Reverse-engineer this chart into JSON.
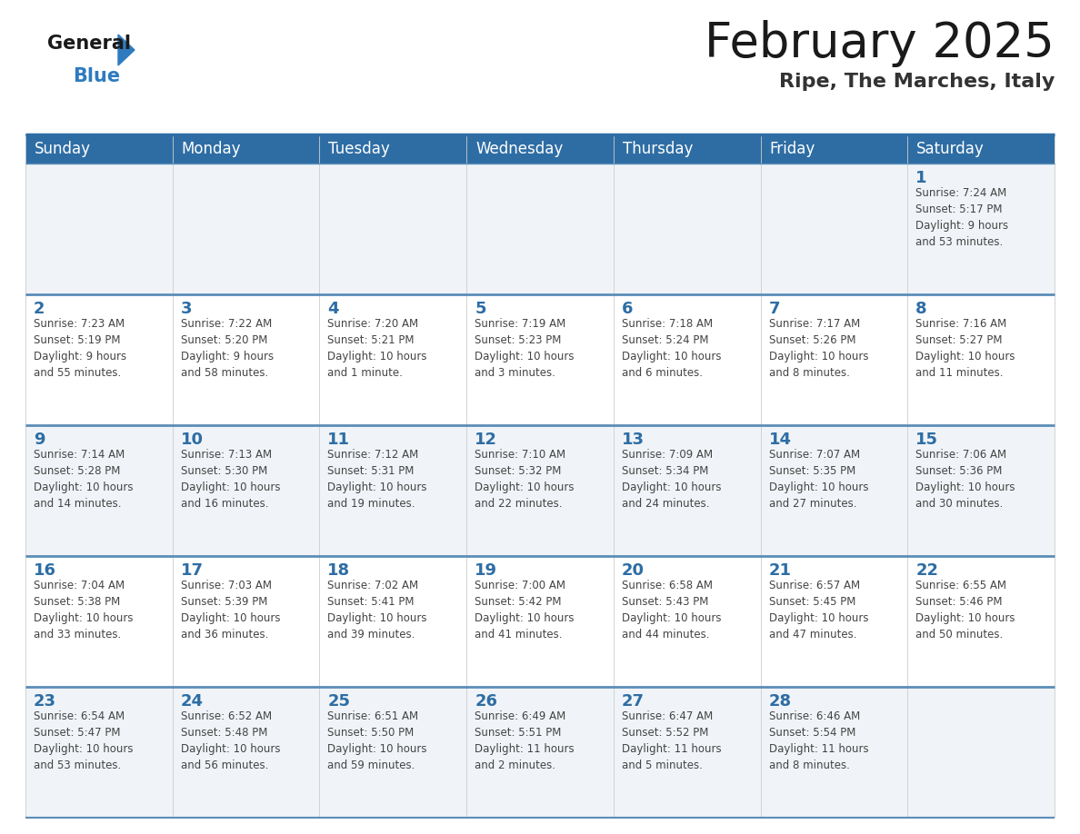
{
  "title": "February 2025",
  "subtitle": "Ripe, The Marches, Italy",
  "header_bg_color": "#2e6da4",
  "header_text_color": "#ffffff",
  "cell_bg_even": "#f0f4f8",
  "cell_bg_odd": "#ffffff",
  "day_number_color": "#2e6da4",
  "text_color": "#444444",
  "separator_color": "#5b8db8",
  "border_color": "#2e6da4",
  "logo_black": "#1a1a1a",
  "logo_blue": "#2e7bbf",
  "days_of_week": [
    "Sunday",
    "Monday",
    "Tuesday",
    "Wednesday",
    "Thursday",
    "Friday",
    "Saturday"
  ],
  "weeks": [
    [
      {
        "day": null,
        "info": null
      },
      {
        "day": null,
        "info": null
      },
      {
        "day": null,
        "info": null
      },
      {
        "day": null,
        "info": null
      },
      {
        "day": null,
        "info": null
      },
      {
        "day": null,
        "info": null
      },
      {
        "day": 1,
        "info": "Sunrise: 7:24 AM\nSunset: 5:17 PM\nDaylight: 9 hours\nand 53 minutes."
      }
    ],
    [
      {
        "day": 2,
        "info": "Sunrise: 7:23 AM\nSunset: 5:19 PM\nDaylight: 9 hours\nand 55 minutes."
      },
      {
        "day": 3,
        "info": "Sunrise: 7:22 AM\nSunset: 5:20 PM\nDaylight: 9 hours\nand 58 minutes."
      },
      {
        "day": 4,
        "info": "Sunrise: 7:20 AM\nSunset: 5:21 PM\nDaylight: 10 hours\nand 1 minute."
      },
      {
        "day": 5,
        "info": "Sunrise: 7:19 AM\nSunset: 5:23 PM\nDaylight: 10 hours\nand 3 minutes."
      },
      {
        "day": 6,
        "info": "Sunrise: 7:18 AM\nSunset: 5:24 PM\nDaylight: 10 hours\nand 6 minutes."
      },
      {
        "day": 7,
        "info": "Sunrise: 7:17 AM\nSunset: 5:26 PM\nDaylight: 10 hours\nand 8 minutes."
      },
      {
        "day": 8,
        "info": "Sunrise: 7:16 AM\nSunset: 5:27 PM\nDaylight: 10 hours\nand 11 minutes."
      }
    ],
    [
      {
        "day": 9,
        "info": "Sunrise: 7:14 AM\nSunset: 5:28 PM\nDaylight: 10 hours\nand 14 minutes."
      },
      {
        "day": 10,
        "info": "Sunrise: 7:13 AM\nSunset: 5:30 PM\nDaylight: 10 hours\nand 16 minutes."
      },
      {
        "day": 11,
        "info": "Sunrise: 7:12 AM\nSunset: 5:31 PM\nDaylight: 10 hours\nand 19 minutes."
      },
      {
        "day": 12,
        "info": "Sunrise: 7:10 AM\nSunset: 5:32 PM\nDaylight: 10 hours\nand 22 minutes."
      },
      {
        "day": 13,
        "info": "Sunrise: 7:09 AM\nSunset: 5:34 PM\nDaylight: 10 hours\nand 24 minutes."
      },
      {
        "day": 14,
        "info": "Sunrise: 7:07 AM\nSunset: 5:35 PM\nDaylight: 10 hours\nand 27 minutes."
      },
      {
        "day": 15,
        "info": "Sunrise: 7:06 AM\nSunset: 5:36 PM\nDaylight: 10 hours\nand 30 minutes."
      }
    ],
    [
      {
        "day": 16,
        "info": "Sunrise: 7:04 AM\nSunset: 5:38 PM\nDaylight: 10 hours\nand 33 minutes."
      },
      {
        "day": 17,
        "info": "Sunrise: 7:03 AM\nSunset: 5:39 PM\nDaylight: 10 hours\nand 36 minutes."
      },
      {
        "day": 18,
        "info": "Sunrise: 7:02 AM\nSunset: 5:41 PM\nDaylight: 10 hours\nand 39 minutes."
      },
      {
        "day": 19,
        "info": "Sunrise: 7:00 AM\nSunset: 5:42 PM\nDaylight: 10 hours\nand 41 minutes."
      },
      {
        "day": 20,
        "info": "Sunrise: 6:58 AM\nSunset: 5:43 PM\nDaylight: 10 hours\nand 44 minutes."
      },
      {
        "day": 21,
        "info": "Sunrise: 6:57 AM\nSunset: 5:45 PM\nDaylight: 10 hours\nand 47 minutes."
      },
      {
        "day": 22,
        "info": "Sunrise: 6:55 AM\nSunset: 5:46 PM\nDaylight: 10 hours\nand 50 minutes."
      }
    ],
    [
      {
        "day": 23,
        "info": "Sunrise: 6:54 AM\nSunset: 5:47 PM\nDaylight: 10 hours\nand 53 minutes."
      },
      {
        "day": 24,
        "info": "Sunrise: 6:52 AM\nSunset: 5:48 PM\nDaylight: 10 hours\nand 56 minutes."
      },
      {
        "day": 25,
        "info": "Sunrise: 6:51 AM\nSunset: 5:50 PM\nDaylight: 10 hours\nand 59 minutes."
      },
      {
        "day": 26,
        "info": "Sunrise: 6:49 AM\nSunset: 5:51 PM\nDaylight: 11 hours\nand 2 minutes."
      },
      {
        "day": 27,
        "info": "Sunrise: 6:47 AM\nSunset: 5:52 PM\nDaylight: 11 hours\nand 5 minutes."
      },
      {
        "day": 28,
        "info": "Sunrise: 6:46 AM\nSunset: 5:54 PM\nDaylight: 11 hours\nand 8 minutes."
      },
      {
        "day": null,
        "info": null
      }
    ]
  ]
}
